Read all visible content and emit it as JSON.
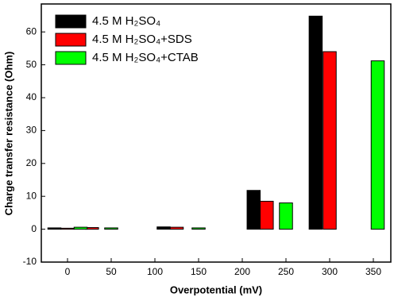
{
  "chart_data": {
    "type": "bar",
    "xlabel": "Overpotential (mV)",
    "ylabel": "Charge transfer resistance (Ohm)",
    "xlim": [
      -30,
      370
    ],
    "xticks": [
      0,
      50,
      100,
      150,
      200,
      250,
      300,
      350
    ],
    "ylim": [
      -10,
      68.5
    ],
    "yticks": [
      -10,
      0,
      10,
      20,
      30,
      40,
      50,
      60
    ],
    "bar_width": 15,
    "legend": "upper left",
    "series": [
      {
        "name": "4.5 M H₂SO₄",
        "color": "#000000",
        "x": [
          -15,
          110,
          213,
          284
        ],
        "values": [
          0.4,
          0.7,
          11.8,
          64.8
        ]
      },
      {
        "name": "4.5 M H₂SO₄+SDS",
        "color": "#ff0000",
        "x": [
          0,
          28,
          125,
          228,
          300
        ],
        "values": [
          0.3,
          0.5,
          0.6,
          8.5,
          54
        ]
      },
      {
        "name": "4.5 M H₂SO₄+CTAB",
        "color": "#00ff00",
        "x": [
          15,
          50,
          150,
          250,
          355
        ],
        "values": [
          0.6,
          0.4,
          0.4,
          8,
          51.2
        ]
      }
    ]
  }
}
